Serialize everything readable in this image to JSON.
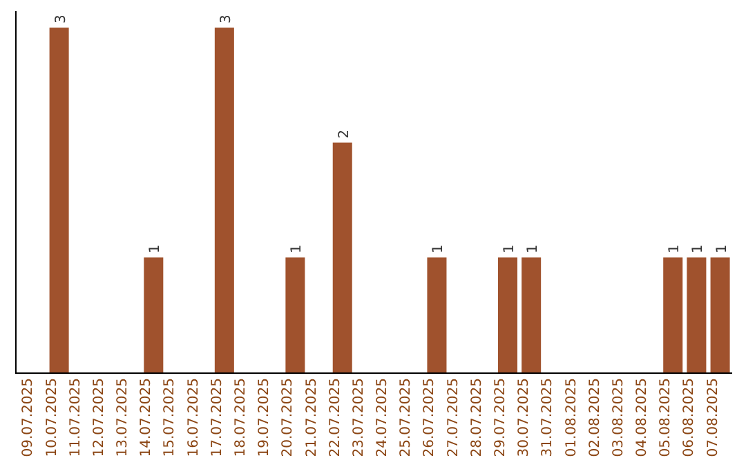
{
  "chart_data": {
    "type": "bar",
    "categories": [
      "09.07.2025",
      "10.07.2025",
      "11.07.2025",
      "12.07.2025",
      "13.07.2025",
      "14.07.2025",
      "15.07.2025",
      "16.07.2025",
      "17.07.2025",
      "18.07.2025",
      "19.07.2025",
      "20.07.2025",
      "21.07.2025",
      "22.07.2025",
      "23.07.2025",
      "24.07.2025",
      "25.07.2025",
      "26.07.2025",
      "27.07.2025",
      "28.07.2025",
      "29.07.2025",
      "30.07.2025",
      "31.07.2025",
      "01.08.2025",
      "02.08.2025",
      "03.08.2025",
      "04.08.2025",
      "05.08.2025",
      "06.08.2025",
      "07.08.2025"
    ],
    "values": [
      0,
      3,
      0,
      0,
      0,
      1,
      0,
      0,
      3,
      0,
      0,
      1,
      0,
      2,
      0,
      0,
      0,
      1,
      0,
      0,
      1,
      1,
      0,
      0,
      0,
      0,
      0,
      1,
      1,
      1
    ],
    "value_labels": [
      null,
      "3",
      null,
      null,
      null,
      "1",
      null,
      null,
      "3",
      null,
      null,
      "1",
      null,
      "2",
      null,
      null,
      null,
      "1",
      null,
      null,
      "1",
      "1",
      null,
      null,
      null,
      null,
      null,
      "1",
      "1",
      "1"
    ],
    "color": "#a0522d",
    "ylim": [
      0,
      3
    ],
    "tick_labels": "x"
  }
}
